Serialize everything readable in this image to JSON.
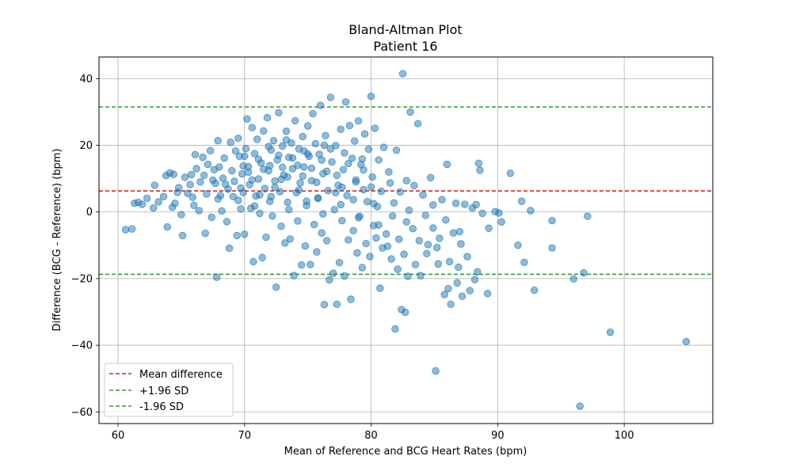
{
  "chart_data": {
    "type": "scatter",
    "title": "Bland-Altman Plot",
    "subtitle": "Patient 16",
    "xlabel": "Mean of Reference and BCG Heart Rates (bpm)",
    "ylabel": "Difference (BCG - Reference) (bpm)",
    "xlim": [
      58.5,
      107
    ],
    "ylim": [
      -63.5,
      46.5
    ],
    "xticks": [
      60,
      70,
      80,
      90,
      100
    ],
    "yticks": [
      -60,
      -40,
      -20,
      0,
      20,
      40
    ],
    "grid": true,
    "legend_position": "bottom-left",
    "point_color": "#1f77b4",
    "lines": [
      {
        "name": "Mean difference",
        "y": 6.3,
        "color": "#d62728"
      },
      {
        "name": "+1.96 SD",
        "y": 31.5,
        "color": "#2ca02c"
      },
      {
        "name": "-1.96 SD",
        "y": -18.7,
        "color": "#2ca02c"
      }
    ],
    "points": [
      [
        60.6,
        -5.3
      ],
      [
        61.1,
        -5.1
      ],
      [
        61.3,
        2.6
      ],
      [
        61.6,
        2.9
      ],
      [
        61.9,
        2.3
      ],
      [
        62.3,
        4.1
      ],
      [
        62.8,
        1.2
      ],
      [
        62.9,
        8.0
      ],
      [
        63.2,
        3.0
      ],
      [
        63.6,
        4.6
      ],
      [
        63.8,
        10.9
      ],
      [
        63.9,
        -4.5
      ],
      [
        64.1,
        11.7
      ],
      [
        64.3,
        1.4
      ],
      [
        64.4,
        11.3
      ],
      [
        64.5,
        2.6
      ],
      [
        64.7,
        5.9
      ],
      [
        64.8,
        7.3
      ],
      [
        65.0,
        -0.8
      ],
      [
        65.1,
        -7.1
      ],
      [
        65.3,
        10.4
      ],
      [
        65.5,
        5.6
      ],
      [
        65.8,
        11.2
      ],
      [
        65.9,
        4.4
      ],
      [
        66.1,
        17.2
      ],
      [
        66.2,
        13.0
      ],
      [
        66.4,
        0.4
      ],
      [
        66.5,
        9.0
      ],
      [
        66.7,
        16.4
      ],
      [
        66.9,
        -6.4
      ],
      [
        67.0,
        5.4
      ],
      [
        67.1,
        14.3
      ],
      [
        67.3,
        18.4
      ],
      [
        67.4,
        -1.6
      ],
      [
        67.6,
        12.7
      ],
      [
        67.7,
        8.6
      ],
      [
        67.8,
        -19.6
      ],
      [
        67.9,
        21.4
      ],
      [
        68.1,
        4.9
      ],
      [
        68.2,
        0.3
      ],
      [
        68.4,
        16.2
      ],
      [
        68.5,
        8.3
      ],
      [
        68.6,
        -2.9
      ],
      [
        68.8,
        -10.9
      ],
      [
        68.9,
        20.9
      ],
      [
        69.0,
        12.4
      ],
      [
        69.1,
        4.6
      ],
      [
        69.3,
        18.3
      ],
      [
        69.4,
        -7.1
      ],
      [
        69.5,
        22.1
      ],
      [
        69.6,
        16.7
      ],
      [
        69.7,
        0.9
      ],
      [
        69.8,
        11.4
      ],
      [
        69.9,
        5.8
      ],
      [
        70.0,
        -6.7
      ],
      [
        70.1,
        19.0
      ],
      [
        70.2,
        27.9
      ],
      [
        70.3,
        13.6
      ],
      [
        70.4,
        8.2
      ],
      [
        70.5,
        1.1
      ],
      [
        70.6,
        25.3
      ],
      [
        70.7,
        -14.9
      ],
      [
        70.8,
        17.5
      ],
      [
        70.9,
        4.8
      ],
      [
        71.0,
        21.8
      ],
      [
        71.1,
        9.9
      ],
      [
        71.2,
        -0.4
      ],
      [
        71.3,
        14.7
      ],
      [
        71.4,
        -13.7
      ],
      [
        71.5,
        24.3
      ],
      [
        71.6,
        7.0
      ],
      [
        71.7,
        -7.6
      ],
      [
        71.8,
        28.3
      ],
      [
        71.9,
        12.4
      ],
      [
        72.0,
        3.2
      ],
      [
        72.1,
        18.6
      ],
      [
        72.2,
        -1.2
      ],
      [
        72.3,
        21.4
      ],
      [
        72.4,
        9.3
      ],
      [
        72.5,
        -22.6
      ],
      [
        72.6,
        15.6
      ],
      [
        72.7,
        29.8
      ],
      [
        72.8,
        6.1
      ],
      [
        72.9,
        -4.3
      ],
      [
        73.0,
        19.8
      ],
      [
        73.1,
        11.1
      ],
      [
        73.2,
        -9.3
      ],
      [
        73.3,
        24.2
      ],
      [
        73.4,
        2.9
      ],
      [
        73.5,
        16.4
      ],
      [
        73.6,
        -8.1
      ],
      [
        73.7,
        20.7
      ],
      [
        73.8,
        13.0
      ],
      [
        73.9,
        -19.1
      ],
      [
        74.0,
        27.4
      ],
      [
        74.1,
        5.8
      ],
      [
        74.2,
        -2.7
      ],
      [
        74.3,
        18.9
      ],
      [
        74.4,
        8.7
      ],
      [
        74.5,
        -15.9
      ],
      [
        74.6,
        22.6
      ],
      [
        74.7,
        13.5
      ],
      [
        74.8,
        -10.2
      ],
      [
        74.9,
        1.9
      ],
      [
        75.0,
        25.8
      ],
      [
        75.1,
        16.7
      ],
      [
        75.2,
        -15.8
      ],
      [
        75.3,
        9.4
      ],
      [
        75.4,
        29.5
      ],
      [
        75.5,
        -3.8
      ],
      [
        75.6,
        20.5
      ],
      [
        75.7,
        -12.0
      ],
      [
        75.8,
        4.2
      ],
      [
        75.9,
        17.3
      ],
      [
        76.0,
        32.0
      ],
      [
        76.1,
        -6.3
      ],
      [
        76.2,
        11.5
      ],
      [
        76.3,
        -27.8
      ],
      [
        76.4,
        22.9
      ],
      [
        76.5,
        -8.6
      ],
      [
        76.6,
        6.4
      ],
      [
        76.7,
        -20.4
      ],
      [
        76.8,
        34.4
      ],
      [
        76.9,
        15.0
      ],
      [
        77.0,
        -18.4
      ],
      [
        77.1,
        0.7
      ],
      [
        77.2,
        19.9
      ],
      [
        77.3,
        -27.7
      ],
      [
        77.4,
        8.0
      ],
      [
        77.5,
        -15.2
      ],
      [
        77.6,
        24.8
      ],
      [
        77.7,
        -2.6
      ],
      [
        77.8,
        12.7
      ],
      [
        77.9,
        -19.2
      ],
      [
        78.0,
        33.0
      ],
      [
        78.1,
        4.9
      ],
      [
        78.2,
        -8.4
      ],
      [
        78.3,
        25.9
      ],
      [
        78.4,
        -26.2
      ],
      [
        78.5,
        16.1
      ],
      [
        78.6,
        -5.6
      ],
      [
        78.7,
        21.3
      ],
      [
        78.8,
        9.6
      ],
      [
        78.9,
        -12.3
      ],
      [
        79.0,
        27.3
      ],
      [
        79.1,
        -1.3
      ],
      [
        79.2,
        14.2
      ],
      [
        79.3,
        -16.7
      ],
      [
        79.4,
        6.7
      ],
      [
        79.5,
        23.4
      ],
      [
        79.6,
        -9.5
      ],
      [
        79.7,
        3.1
      ],
      [
        79.8,
        18.8
      ],
      [
        79.9,
        -13.4
      ],
      [
        80.0,
        34.7
      ],
      [
        80.1,
        10.5
      ],
      [
        80.2,
        -4.1
      ],
      [
        80.3,
        25.1
      ],
      [
        80.4,
        -7.8
      ],
      [
        80.5,
        1.6
      ],
      [
        80.6,
        15.6
      ],
      [
        80.7,
        -22.9
      ],
      [
        80.8,
        6.2
      ],
      [
        80.9,
        -10.8
      ],
      [
        81.0,
        19.4
      ],
      [
        81.2,
        -6.6
      ],
      [
        81.4,
        12.0
      ],
      [
        81.6,
        -14.1
      ],
      [
        81.8,
        2.7
      ],
      [
        81.9,
        -35.1
      ],
      [
        82.0,
        18.5
      ],
      [
        82.2,
        -8.2
      ],
      [
        82.3,
        6.0
      ],
      [
        82.4,
        -29.3
      ],
      [
        82.5,
        41.5
      ],
      [
        82.6,
        -12.7
      ],
      [
        82.7,
        -30.1
      ],
      [
        82.8,
        9.4
      ],
      [
        82.9,
        -19.3
      ],
      [
        83.0,
        0.5
      ],
      [
        83.1,
        30.0
      ],
      [
        83.3,
        -5.0
      ],
      [
        83.5,
        -15.8
      ],
      [
        83.7,
        26.5
      ],
      [
        83.9,
        -19.1
      ],
      [
        84.1,
        5.1
      ],
      [
        84.3,
        -1.0
      ],
      [
        84.5,
        -9.8
      ],
      [
        84.7,
        10.3
      ],
      [
        84.9,
        -4.8
      ],
      [
        85.1,
        -47.7
      ],
      [
        85.3,
        -15.6
      ],
      [
        85.4,
        -7.9
      ],
      [
        85.6,
        3.7
      ],
      [
        85.8,
        -24.8
      ],
      [
        85.9,
        -2.4
      ],
      [
        86.0,
        14.3
      ],
      [
        86.1,
        -23.0
      ],
      [
        86.3,
        -27.7
      ],
      [
        86.5,
        -6.3
      ],
      [
        86.7,
        2.6
      ],
      [
        86.8,
        -21.3
      ],
      [
        86.9,
        -16.6
      ],
      [
        87.0,
        -5.9
      ],
      [
        87.2,
        -25.3
      ],
      [
        87.4,
        2.3
      ],
      [
        87.6,
        -13.4
      ],
      [
        87.8,
        -23.6
      ],
      [
        88.0,
        1.2
      ],
      [
        88.2,
        -20.3
      ],
      [
        88.3,
        2.2
      ],
      [
        88.4,
        -18.0
      ],
      [
        88.5,
        14.6
      ],
      [
        88.6,
        12.5
      ],
      [
        88.8,
        -0.4
      ],
      [
        89.2,
        -24.5
      ],
      [
        89.3,
        -4.9
      ],
      [
        89.8,
        0.1
      ],
      [
        90.1,
        -0.3
      ],
      [
        90.3,
        -3.0
      ],
      [
        91.0,
        11.6
      ],
      [
        91.6,
        -10.0
      ],
      [
        91.9,
        3.2
      ],
      [
        92.1,
        -15.1
      ],
      [
        92.6,
        0.4
      ],
      [
        92.9,
        -23.5
      ],
      [
        94.3,
        -2.6
      ],
      [
        94.3,
        -10.8
      ],
      [
        96.0,
        -20.1
      ],
      [
        96.5,
        -58.3
      ],
      [
        96.8,
        -18.3
      ],
      [
        97.1,
        -1.3
      ],
      [
        98.9,
        -36.1
      ],
      [
        104.9,
        -38.9
      ],
      [
        66.0,
        2.0
      ],
      [
        67.5,
        9.5
      ],
      [
        68.0,
        13.5
      ],
      [
        68.7,
        6.8
      ],
      [
        69.2,
        9.2
      ],
      [
        69.9,
        13.8
      ],
      [
        70.3,
        11.9
      ],
      [
        70.6,
        9.6
      ],
      [
        71.1,
        15.8
      ],
      [
        71.5,
        12.8
      ],
      [
        72.0,
        13.9
      ],
      [
        72.4,
        7.4
      ],
      [
        72.7,
        17.0
      ],
      [
        73.0,
        13.4
      ],
      [
        73.4,
        10.5
      ],
      [
        73.8,
        16.2
      ],
      [
        74.2,
        14.0
      ],
      [
        74.6,
        10.8
      ],
      [
        75.0,
        17.4
      ],
      [
        75.3,
        13.1
      ],
      [
        75.7,
        8.9
      ],
      [
        76.1,
        15.6
      ],
      [
        76.5,
        12.2
      ],
      [
        76.8,
        18.9
      ],
      [
        77.3,
        11.0
      ],
      [
        77.7,
        7.4
      ],
      [
        78.2,
        14.5
      ],
      [
        78.8,
        9.0
      ],
      [
        79.4,
        12.6
      ],
      [
        80.0,
        7.5
      ],
      [
        69.5,
        3.5
      ],
      [
        70.8,
        1.8
      ],
      [
        72.1,
        4.6
      ],
      [
        73.5,
        0.7
      ],
      [
        74.9,
        3.2
      ],
      [
        76.2,
        -0.6
      ],
      [
        77.6,
        2.2
      ],
      [
        79.0,
        -1.7
      ],
      [
        80.6,
        -3.9
      ],
      [
        81.7,
        -1.2
      ],
      [
        68.3,
        10.1
      ],
      [
        69.7,
        7.2
      ],
      [
        71.2,
        5.1
      ],
      [
        72.9,
        9.8
      ],
      [
        74.3,
        6.6
      ],
      [
        75.8,
        4.1
      ],
      [
        77.2,
        5.8
      ],
      [
        78.6,
        3.7
      ],
      [
        80.2,
        2.5
      ],
      [
        81.5,
        8.7
      ],
      [
        65.7,
        8.2
      ],
      [
        66.8,
        11.0
      ],
      [
        67.9,
        3.9
      ],
      [
        70.0,
        16.7
      ],
      [
        71.9,
        19.6
      ],
      [
        73.3,
        21.6
      ],
      [
        74.7,
        18.3
      ],
      [
        76.3,
        20.0
      ],
      [
        77.9,
        17.7
      ],
      [
        79.3,
        15.9
      ],
      [
        82.8,
        -3.0
      ],
      [
        83.8,
        -8.6
      ],
      [
        84.4,
        -12.5
      ],
      [
        85.2,
        -10.7
      ],
      [
        86.2,
        -14.9
      ],
      [
        87.1,
        -9.6
      ],
      [
        84.9,
        2.1
      ],
      [
        83.4,
        7.9
      ],
      [
        82.1,
        -17.2
      ],
      [
        81.3,
        -10.3
      ]
    ]
  }
}
